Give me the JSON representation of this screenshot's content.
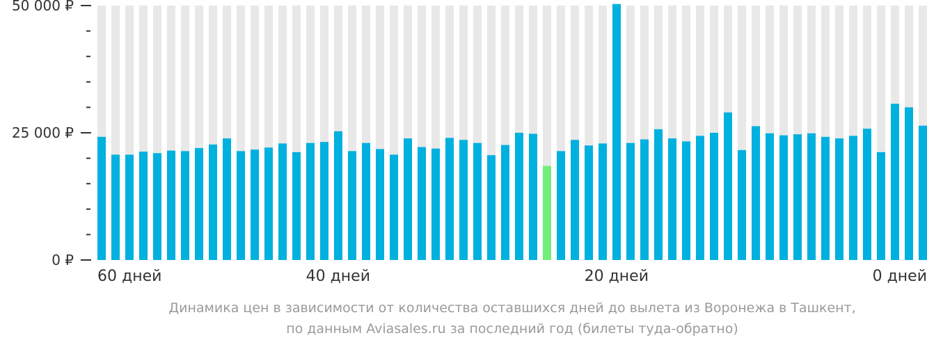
{
  "chart_data": {
    "type": "bar",
    "yticks": [
      {
        "value": 0,
        "label": "0 ₽"
      },
      {
        "value": 25000,
        "label": "25 000 ₽"
      },
      {
        "value": 50000,
        "label": "50 000 ₽"
      }
    ],
    "ylim": [
      0,
      50000
    ],
    "x_tick_labels": [
      {
        "days": 60,
        "label": "60 дней"
      },
      {
        "days": 40,
        "label": "40 дней"
      },
      {
        "days": 20,
        "label": "20 дней"
      },
      {
        "days": 0,
        "label": "0 дней"
      }
    ],
    "days_left": [
      59,
      58,
      57,
      56,
      55,
      54,
      53,
      52,
      51,
      50,
      49,
      48,
      47,
      46,
      45,
      44,
      43,
      42,
      41,
      40,
      39,
      38,
      37,
      36,
      35,
      34,
      33,
      32,
      31,
      30,
      29,
      28,
      27,
      26,
      25,
      24,
      23,
      22,
      21,
      20,
      19,
      18,
      17,
      16,
      15,
      14,
      13,
      12,
      11,
      10,
      9,
      8,
      7,
      6,
      5,
      4,
      3,
      2,
      1,
      0
    ],
    "values": [
      24200,
      20700,
      20700,
      21300,
      21000,
      21500,
      21400,
      22000,
      22700,
      23900,
      21400,
      21700,
      22100,
      22900,
      21200,
      23000,
      23200,
      25300,
      21400,
      23000,
      21800,
      20700,
      23900,
      22200,
      21900,
      24000,
      23600,
      23000,
      20600,
      22600,
      25000,
      24800,
      18500,
      21400,
      23600,
      22500,
      22900,
      50300,
      23000,
      23700,
      25700,
      23900,
      23300,
      24400,
      25000,
      29000,
      21600,
      26300,
      24900,
      24500,
      24700,
      24900,
      24200,
      23900,
      24400,
      25800,
      21200,
      30700,
      30000,
      26400
    ],
    "highlight_index": 32,
    "colors": {
      "bar": "#00b0de",
      "highlight": "#71ef7a",
      "column_bg": "#e8e8e8",
      "axis": "#333333"
    }
  },
  "caption": {
    "line1": "Динамика цен в зависимости от количества оставшихся дней до вылета из Воронежа в Ташкент,",
    "line2": "по данным Aviasales.ru за последний год (билеты туда-обратно)"
  }
}
